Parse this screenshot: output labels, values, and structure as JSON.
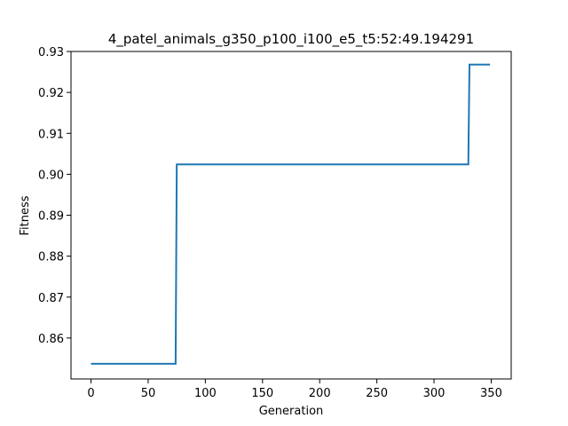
{
  "chart_data": {
    "type": "line",
    "title": "4_patel_animals_g350_p100_i100_e5_t5:52:49.194291",
    "xlabel": "Generation",
    "ylabel": "Fitness",
    "xlim": [
      -17.5,
      367.5
    ],
    "ylim": [
      0.85,
      0.93
    ],
    "xticks": [
      0,
      50,
      100,
      150,
      200,
      250,
      300,
      350
    ],
    "yticks": [
      0.86,
      0.87,
      0.88,
      0.89,
      0.9,
      0.91,
      0.92,
      0.93
    ],
    "ytick_labels": [
      "0.86",
      "0.87",
      "0.88",
      "0.89",
      "0.90",
      "0.91",
      "0.92",
      "0.93"
    ],
    "grid": false,
    "line_color": "#1f77b4",
    "series": [
      {
        "x": [
          0,
          74,
          75,
          330,
          331,
          349
        ],
        "y": [
          0.8537,
          0.8537,
          0.9024,
          0.9024,
          0.9268,
          0.9268
        ]
      }
    ]
  }
}
